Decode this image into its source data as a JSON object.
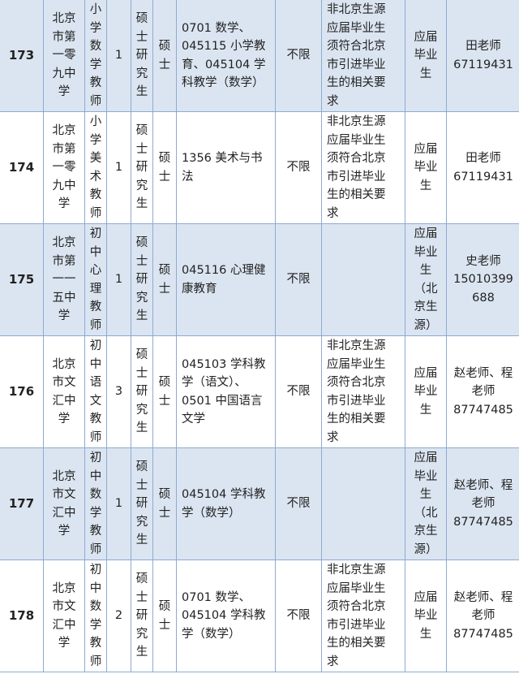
{
  "rows": [
    {
      "no": "173",
      "school": "北京\n市第\n一零\n九中\n学",
      "post": "小\n学\n数\n学\n教\n师",
      "count": "1",
      "edu": "硕\n士\n研\n究\n生",
      "degree": "硕\n士",
      "major": "0701 数学、\n045115 小学教\n育、045104 学\n科教学（数学）",
      "age": "不限",
      "other": "非北京生源\n应届毕业生\n须符合北京\n市引进毕业\n生的相关要\n求",
      "source": "应届\n毕业\n生",
      "contact": "田老师\n67119431"
    },
    {
      "no": "174",
      "school": "北京\n市第\n一零\n九中\n学",
      "post": "小\n学\n美\n术\n教\n师",
      "count": "1",
      "edu": "硕\n士\n研\n究\n生",
      "degree": "硕\n士",
      "major": "1356 美术与书\n法",
      "age": "不限",
      "other": "非北京生源\n应届毕业生\n须符合北京\n市引进毕业\n生的相关要\n求",
      "source": "应届\n毕业\n生",
      "contact": "田老师\n67119431"
    },
    {
      "no": "175",
      "school": "北京\n市第\n一一\n五中\n学",
      "post": "初\n中\n心\n理\n教\n师",
      "count": "1",
      "edu": "硕\n士\n研\n究\n生",
      "degree": "硕\n士",
      "major": "045116 心理健\n康教育",
      "age": "不限",
      "other": "",
      "source": "应届\n毕业\n生\n（北\n京生\n源）",
      "contact": "史老师\n15010399\n688"
    },
    {
      "no": "176",
      "school": "北京\n市文\n汇中\n学",
      "post": "初\n中\n语\n文\n教\n师",
      "count": "3",
      "edu": "硕\n士\n研\n究\n生",
      "degree": "硕\n士",
      "major": "045103 学科教\n学（语文）、\n0501 中国语言\n文学",
      "age": "不限",
      "other": "非北京生源\n应届毕业生\n须符合北京\n市引进毕业\n生的相关要\n求",
      "source": "应届\n毕业\n生",
      "contact": "赵老师、程\n老师\n87747485"
    },
    {
      "no": "177",
      "school": "北京\n市文\n汇中\n学",
      "post": "初\n中\n数\n学\n教\n师",
      "count": "1",
      "edu": "硕\n士\n研\n究\n生",
      "degree": "硕\n士",
      "major": "045104 学科教\n学（数学）",
      "age": "不限",
      "other": "",
      "source": "应届\n毕业\n生\n（北\n京生\n源）",
      "contact": "赵老师、程\n老师\n87747485"
    },
    {
      "no": "178",
      "school": "北京\n市文\n汇中\n学",
      "post": "初\n中\n数\n学\n教\n师",
      "count": "2",
      "edu": "硕\n士\n研\n究\n生",
      "degree": "硕\n士",
      "major": "0701 数学、\n045104 学科教\n学（数学）",
      "age": "不限",
      "other": "非北京生源\n应届毕业生\n须符合北京\n市引进毕业\n生的相关要\n求",
      "source": "应届\n毕业\n生",
      "contact": "赵老师、程\n老师\n87747485"
    }
  ]
}
